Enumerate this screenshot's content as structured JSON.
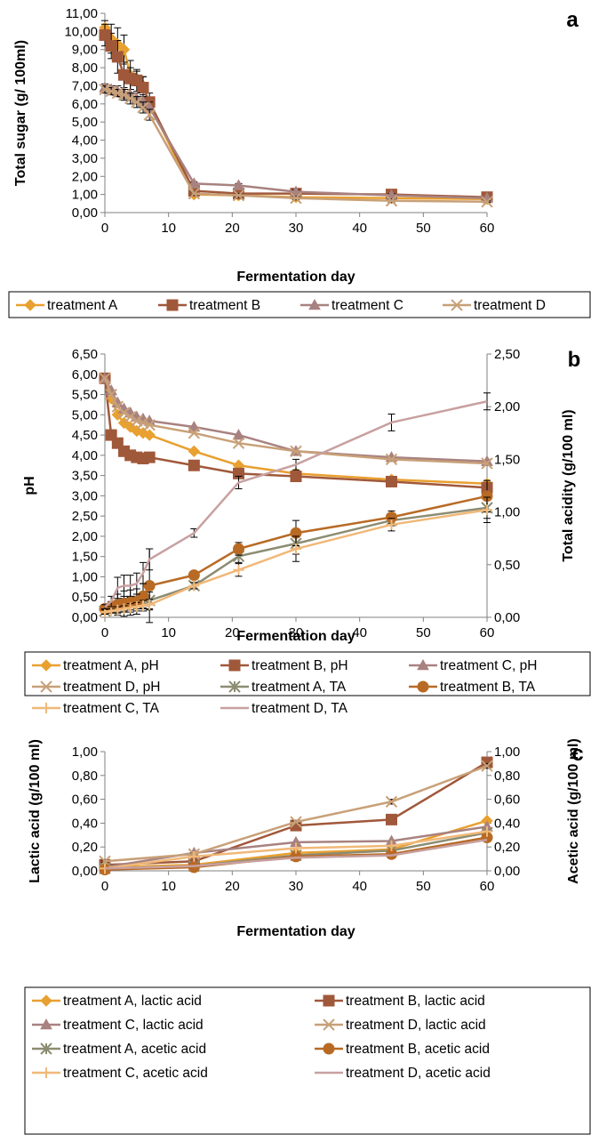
{
  "chart_data": [
    {
      "type": "line",
      "panel_label": "a",
      "xlabel": "Fermentation day",
      "ylabel": "Total sugar (g/ 100ml)",
      "xlim": [
        0,
        60
      ],
      "x_ticks": [
        "0",
        "10",
        "20",
        "30",
        "40",
        "50",
        "60"
      ],
      "ylim": [
        0,
        11
      ],
      "y_ticks": [
        "0,00",
        "1,00",
        "2,00",
        "3,00",
        "4,00",
        "5,00",
        "6,00",
        "7,00",
        "8,00",
        "9,00",
        "10,00",
        "11,00"
      ],
      "legend_position": "bottom",
      "series": [
        {
          "name": "treatment A",
          "color": "#E8A030",
          "marker": "diamond",
          "x": [
            0,
            1,
            2,
            3,
            4,
            5,
            6,
            7,
            14,
            21,
            30,
            45,
            60
          ],
          "y": [
            10.2,
            9.6,
            9.3,
            9.0,
            7.6,
            7.4,
            7.0,
            6.0,
            1.0,
            0.95,
            0.85,
            0.8,
            0.75
          ],
          "err": [
            0.4,
            0.8,
            0.9,
            0.8,
            0.8,
            0.4,
            0.5,
            0.3,
            0.1,
            0.1,
            0.1,
            0.1,
            0.05
          ]
        },
        {
          "name": "treatment B",
          "color": "#A0583A",
          "marker": "square",
          "x": [
            0,
            1,
            2,
            3,
            4,
            5,
            6,
            7,
            14,
            21,
            30,
            45,
            60
          ],
          "y": [
            9.8,
            9.2,
            8.6,
            7.6,
            7.4,
            7.3,
            6.9,
            6.1,
            1.2,
            1.05,
            1.05,
            1.0,
            0.85
          ],
          "err": [
            0.6,
            0.7,
            0.9,
            0.7,
            0.6,
            0.6,
            0.6,
            0.5,
            0.1,
            0.1,
            0.1,
            0.1,
            0.05
          ]
        },
        {
          "name": "treatment C",
          "color": "#A88280",
          "marker": "triangle",
          "x": [
            0,
            1,
            2,
            3,
            4,
            5,
            6,
            7,
            14,
            21,
            30,
            45,
            60
          ],
          "y": [
            6.9,
            6.8,
            6.7,
            6.6,
            6.5,
            6.3,
            6.1,
            5.8,
            1.6,
            1.5,
            1.15,
            0.95,
            0.8
          ],
          "err": [
            0.2,
            0.2,
            0.3,
            0.3,
            0.3,
            0.3,
            0.3,
            0.3,
            0.1,
            0.1,
            0.1,
            0.1,
            0.05
          ]
        },
        {
          "name": "treatment D",
          "color": "#C8A078",
          "marker": "x",
          "x": [
            0,
            1,
            2,
            3,
            4,
            5,
            6,
            7,
            14,
            21,
            30,
            45,
            60
          ],
          "y": [
            6.8,
            6.7,
            6.6,
            6.5,
            6.3,
            6.1,
            5.8,
            5.4,
            1.05,
            0.95,
            0.8,
            0.65,
            0.6
          ],
          "err": [
            0.2,
            0.2,
            0.2,
            0.3,
            0.3,
            0.3,
            0.3,
            0.3,
            0.1,
            0.1,
            0.1,
            0.1,
            0.05
          ]
        }
      ]
    },
    {
      "type": "line",
      "panel_label": "b",
      "xlabel": "Fermentation day",
      "ylabel": "pH",
      "y2label": "Total acidity (g/100 ml)",
      "xlim": [
        0,
        60
      ],
      "x_ticks": [
        "0",
        "10",
        "20",
        "30",
        "40",
        "50",
        "60"
      ],
      "ylim": [
        0,
        6.5
      ],
      "y_ticks": [
        "0,00",
        "0,50",
        "1,00",
        "1,50",
        "2,00",
        "2,50",
        "3,00",
        "3,50",
        "4,00",
        "4,50",
        "5,00",
        "5,50",
        "6,00",
        "6,50"
      ],
      "y2lim": [
        0,
        2.5
      ],
      "y2_ticks": [
        "0,00",
        "0,50",
        "1,00",
        "1,50",
        "2,00",
        "2,50"
      ],
      "legend_position": "bottom",
      "series": [
        {
          "name": "treatment A, pH",
          "color": "#E8A030",
          "marker": "diamond",
          "axis": "left",
          "x": [
            0,
            1,
            2,
            3,
            4,
            5,
            6,
            7,
            14,
            21,
            30,
            45,
            60
          ],
          "y": [
            5.9,
            5.4,
            5.0,
            4.8,
            4.7,
            4.6,
            4.55,
            4.5,
            4.1,
            3.75,
            3.55,
            3.4,
            3.3
          ],
          "err": []
        },
        {
          "name": "treatment B, pH",
          "color": "#A0583A",
          "marker": "square",
          "axis": "left",
          "x": [
            0,
            1,
            2,
            3,
            4,
            5,
            6,
            7,
            14,
            21,
            30,
            45,
            60
          ],
          "y": [
            5.9,
            4.5,
            4.3,
            4.1,
            4.0,
            3.95,
            3.92,
            3.95,
            3.75,
            3.55,
            3.48,
            3.35,
            3.2
          ],
          "err": []
        },
        {
          "name": "treatment C, pH",
          "color": "#A88280",
          "marker": "triangle",
          "axis": "left",
          "x": [
            0,
            1,
            2,
            3,
            4,
            5,
            6,
            7,
            14,
            21,
            30,
            45,
            60
          ],
          "y": [
            5.9,
            5.6,
            5.3,
            5.15,
            5.05,
            4.95,
            4.9,
            4.85,
            4.7,
            4.5,
            4.1,
            3.95,
            3.85
          ],
          "err": []
        },
        {
          "name": "treatment D, pH",
          "color": "#C8A078",
          "marker": "x",
          "axis": "left",
          "x": [
            0,
            1,
            2,
            3,
            4,
            5,
            6,
            7,
            14,
            21,
            30,
            45,
            60
          ],
          "y": [
            5.9,
            5.5,
            5.2,
            5.05,
            4.95,
            4.85,
            4.8,
            4.75,
            4.55,
            4.3,
            4.1,
            3.9,
            3.8
          ],
          "err": []
        },
        {
          "name": "treatment A, TA",
          "color": "#8C8C72",
          "marker": "asterisk",
          "axis": "right",
          "x": [
            0,
            1,
            2,
            3,
            4,
            5,
            6,
            7,
            14,
            21,
            30,
            45,
            60
          ],
          "y": [
            0.06,
            0.08,
            0.1,
            0.12,
            0.13,
            0.14,
            0.15,
            0.16,
            0.3,
            0.58,
            0.7,
            0.92,
            1.04
          ],
          "err": [
            0.02,
            0.03,
            0.05,
            0.06,
            0.06,
            0.06,
            0.06,
            0.08,
            0.03,
            0.06,
            0.1,
            0.05,
            0.1
          ]
        },
        {
          "name": "treatment B, TA",
          "color": "#B86A25",
          "marker": "circle",
          "axis": "right",
          "x": [
            0,
            1,
            2,
            3,
            4,
            5,
            6,
            7,
            14,
            21,
            30,
            45,
            60
          ],
          "y": [
            0.08,
            0.1,
            0.12,
            0.13,
            0.14,
            0.15,
            0.2,
            0.3,
            0.4,
            0.65,
            0.8,
            0.95,
            1.15
          ],
          "err": [
            0.02,
            0.05,
            0.1,
            0.12,
            0.12,
            0.12,
            0.12,
            0.35,
            0.03,
            0.06,
            0.12,
            0.06,
            0.15
          ]
        },
        {
          "name": "treatment C, TA",
          "color": "#F0B878",
          "marker": "plus",
          "axis": "right",
          "x": [
            0,
            1,
            2,
            3,
            4,
            5,
            6,
            7,
            14,
            21,
            30,
            45,
            60
          ],
          "y": [
            0.05,
            0.06,
            0.07,
            0.08,
            0.09,
            0.1,
            0.11,
            0.12,
            0.3,
            0.45,
            0.65,
            0.88,
            1.02
          ],
          "err": [
            0.02,
            0.02,
            0.03,
            0.03,
            0.04,
            0.04,
            0.05,
            0.05,
            0.03,
            0.06,
            0.12,
            0.06,
            0.12
          ]
        },
        {
          "name": "treatment D, TA",
          "color": "#C8A0A0",
          "marker": "none",
          "axis": "right",
          "x": [
            0,
            1,
            2,
            3,
            4,
            5,
            6,
            7,
            14,
            21,
            30,
            45,
            60
          ],
          "y": [
            0.1,
            0.15,
            0.28,
            0.3,
            0.3,
            0.32,
            0.42,
            0.55,
            0.8,
            1.28,
            1.45,
            1.85,
            2.05
          ],
          "err": [
            0.02,
            0.05,
            0.1,
            0.1,
            0.1,
            0.1,
            0.1,
            0.1,
            0.04,
            0.06,
            0.05,
            0.08,
            0.08
          ]
        }
      ]
    },
    {
      "type": "line",
      "panel_label": "c",
      "xlabel": "Fermentation day",
      "ylabel": "Lactic acid (g/100 ml)",
      "y2label": "Acetic acid (g/100 ml)",
      "xlim": [
        0,
        60
      ],
      "x_ticks": [
        "0",
        "10",
        "20",
        "30",
        "40",
        "50",
        "60"
      ],
      "ylim": [
        0,
        1
      ],
      "y_ticks": [
        "0,00",
        "0,20",
        "0,40",
        "0,60",
        "0,80",
        "1,00"
      ],
      "y2lim": [
        0,
        1
      ],
      "y2_ticks": [
        "0,00",
        "0,20",
        "0,40",
        "0,60",
        "0,80",
        "1,00"
      ],
      "legend_position": "bottom",
      "series": [
        {
          "name": "treatment A, lactic acid",
          "color": "#E8A030",
          "marker": "diamond",
          "axis": "left",
          "x": [
            0,
            14,
            30,
            45,
            60
          ],
          "y": [
            0.03,
            0.05,
            0.15,
            0.18,
            0.42
          ],
          "err": []
        },
        {
          "name": "treatment B, lactic acid",
          "color": "#A0583A",
          "marker": "square",
          "axis": "left",
          "x": [
            0,
            14,
            30,
            45,
            60
          ],
          "y": [
            0.05,
            0.08,
            0.38,
            0.43,
            0.91
          ],
          "err": [
            0.01,
            0.01,
            0.02,
            0.02,
            0.02
          ]
        },
        {
          "name": "treatment C, lactic acid",
          "color": "#A88280",
          "marker": "triangle",
          "axis": "left",
          "x": [
            0,
            14,
            30,
            45,
            60
          ],
          "y": [
            0.03,
            0.15,
            0.24,
            0.25,
            0.37
          ],
          "err": []
        },
        {
          "name": "treatment D, lactic acid",
          "color": "#C8A078",
          "marker": "x",
          "axis": "left",
          "x": [
            0,
            14,
            30,
            45,
            60
          ],
          "y": [
            0.08,
            0.14,
            0.41,
            0.58,
            0.88
          ],
          "err": [
            0.01,
            0.01,
            0.01,
            0.02,
            0.02
          ]
        },
        {
          "name": "treatment A, acetic acid",
          "color": "#8C8C72",
          "marker": "asterisk",
          "axis": "right",
          "x": [
            0,
            14,
            30,
            45,
            60
          ],
          "y": [
            0.02,
            0.04,
            0.13,
            0.17,
            0.32
          ],
          "err": []
        },
        {
          "name": "treatment B, acetic acid",
          "color": "#B86A25",
          "marker": "circle",
          "axis": "right",
          "x": [
            0,
            14,
            30,
            45,
            60
          ],
          "y": [
            0.01,
            0.03,
            0.12,
            0.14,
            0.28
          ],
          "err": []
        },
        {
          "name": "treatment C, acetic acid",
          "color": "#F0B878",
          "marker": "plus",
          "axis": "right",
          "x": [
            0,
            14,
            30,
            45,
            60
          ],
          "y": [
            0.02,
            0.12,
            0.19,
            0.21,
            0.33
          ],
          "err": []
        },
        {
          "name": "treatment D, acetic acid",
          "color": "#C8A0A0",
          "marker": "none",
          "axis": "right",
          "x": [
            0,
            14,
            30,
            45,
            60
          ],
          "y": [
            0.02,
            0.04,
            0.11,
            0.13,
            0.26
          ],
          "err": []
        }
      ]
    }
  ]
}
